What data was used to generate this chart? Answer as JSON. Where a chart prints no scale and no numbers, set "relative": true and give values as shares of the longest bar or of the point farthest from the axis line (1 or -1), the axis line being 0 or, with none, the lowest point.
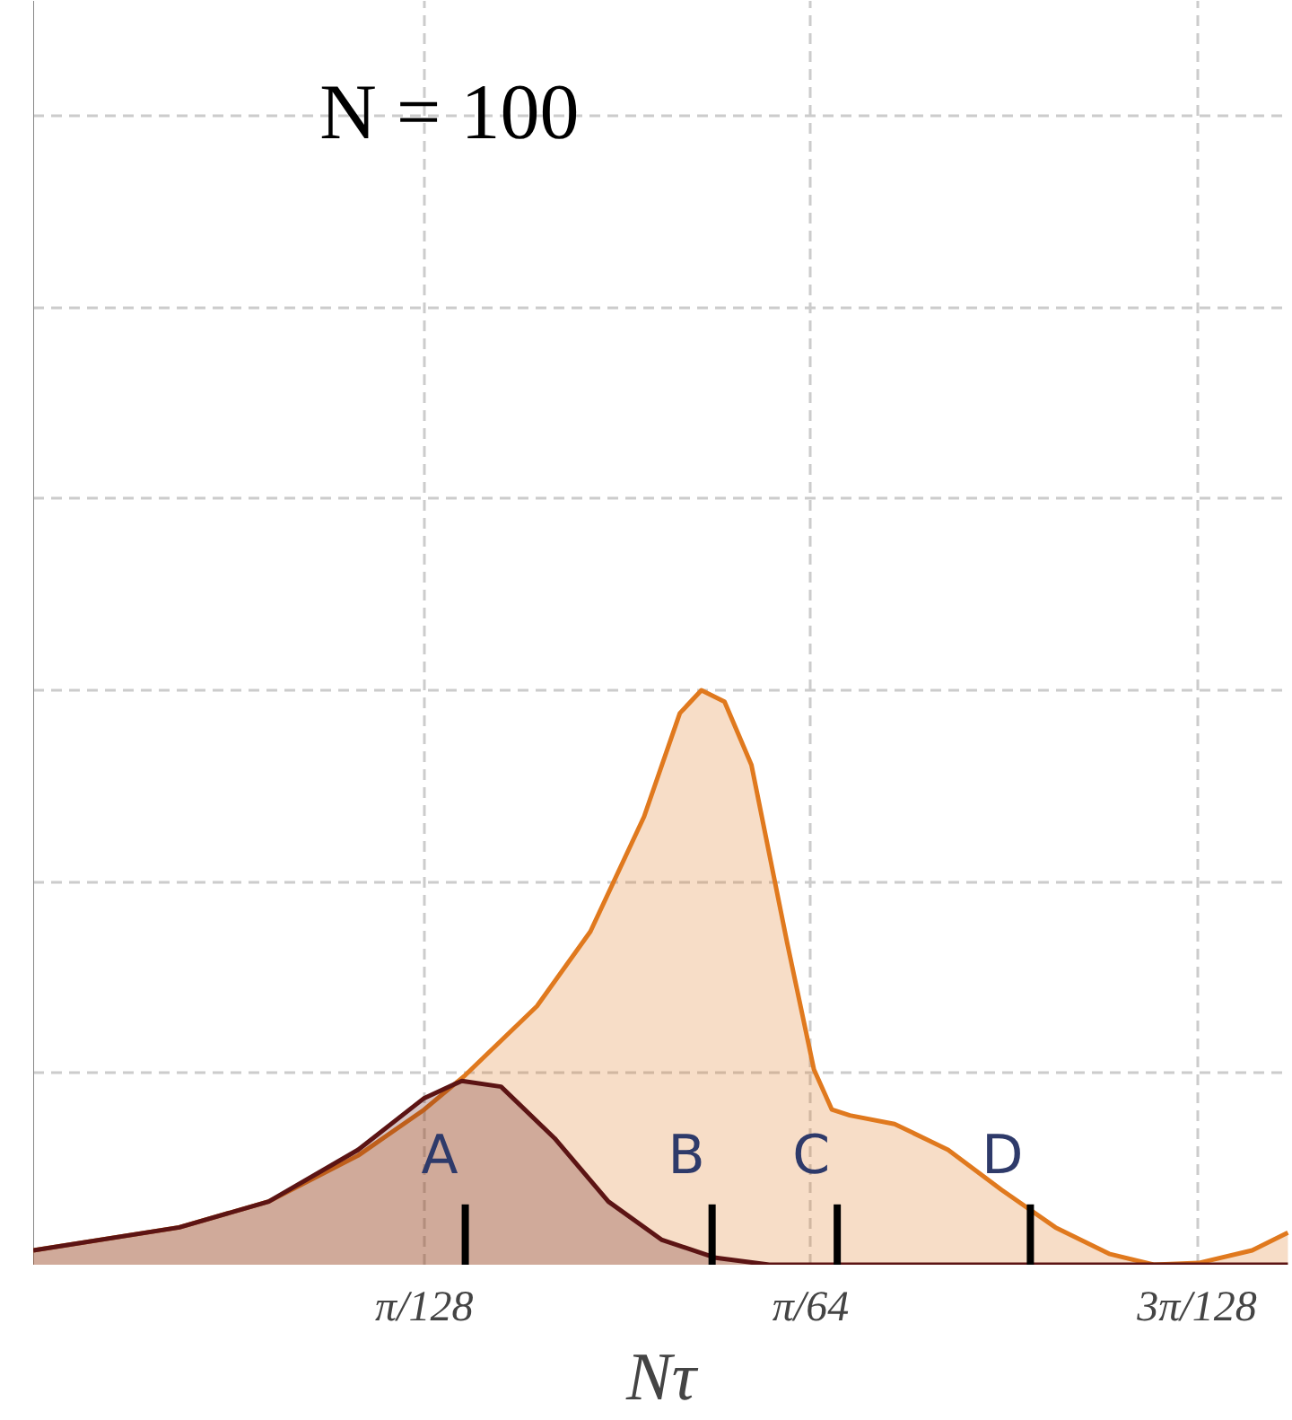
{
  "chart_data": {
    "type": "area",
    "title": "N = 100",
    "xlabel": "Nτ",
    "relative": true,
    "grid": true,
    "xlim": [
      -0.0003,
      0.0795
    ],
    "xticks": [
      {
        "value": 0.02454,
        "label": "π/128"
      },
      {
        "value": 0.04909,
        "label": "π/64"
      },
      {
        "value": 0.07363,
        "label": "3π/128"
      }
    ],
    "series": [
      {
        "color": "#e0791e",
        "x": [
          -0.0003,
          0.00898,
          0.01466,
          0.02034,
          0.02454,
          0.02715,
          0.0317,
          0.0351,
          0.03851,
          0.04078,
          0.04215,
          0.04362,
          0.04533,
          0.0476,
          0.0493,
          0.05044,
          0.05158,
          0.05442,
          0.05782,
          0.06123,
          0.06464,
          0.06805,
          0.07089,
          0.07373,
          0.07714,
          0.07941
        ],
        "values": [
          0.025,
          0.065,
          0.11,
          0.19,
          0.27,
          0.33,
          0.45,
          0.58,
          0.78,
          0.96,
          1,
          0.98,
          0.87,
          0.56,
          0.34,
          0.27,
          0.26,
          0.245,
          0.2,
          0.13,
          0.065,
          0.019,
          0,
          0.003,
          0.025,
          0.056
        ]
      },
      {
        "color": "#5c1414",
        "x": [
          -0.0003,
          0.00898,
          0.01466,
          0.02034,
          0.02454,
          0.02693,
          0.02942,
          0.03283,
          0.03624,
          0.03965,
          0.04306,
          0.04646,
          0.07941
        ],
        "values": [
          0.025,
          0.065,
          0.11,
          0.2,
          0.29,
          0.32,
          0.31,
          0.22,
          0.11,
          0.043,
          0.012,
          0,
          0
        ]
      }
    ],
    "annotations": [
      {
        "text": "A",
        "x": 0.02715,
        "y": 0
      },
      {
        "text": "B",
        "x": 0.04283,
        "y": 0
      },
      {
        "text": "C",
        "x": 0.05078,
        "y": 0
      },
      {
        "text": "D",
        "x": 0.06305,
        "y": 0
      }
    ]
  }
}
